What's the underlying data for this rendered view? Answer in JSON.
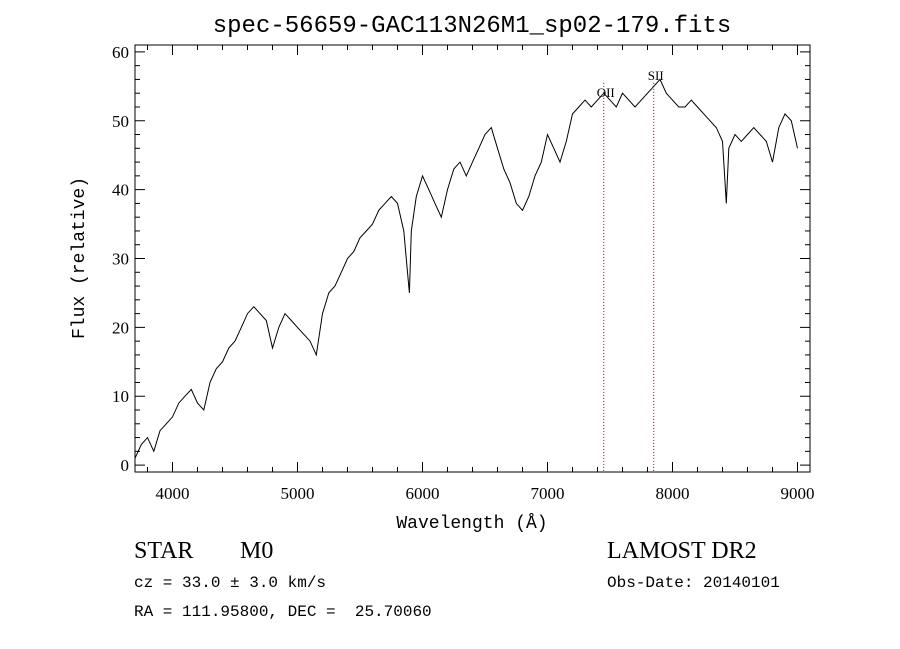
{
  "chart_data": {
    "type": "line",
    "title": "spec-56659-GAC113N26M1_sp02-179.fits",
    "xlabel": "Wavelength (Å)",
    "ylabel": "Flux (relative)",
    "xlim": [
      3700,
      9100
    ],
    "ylim": [
      -1,
      61
    ],
    "x_ticks": [
      4000,
      5000,
      6000,
      7000,
      8000,
      9000
    ],
    "y_ticks": [
      0,
      10,
      20,
      30,
      40,
      50,
      60
    ],
    "grid": false,
    "line_color": "#000000",
    "marker_color": "#8b0000",
    "spectrum": {
      "x": [
        3700,
        3750,
        3800,
        3850,
        3900,
        3950,
        4000,
        4050,
        4100,
        4150,
        4200,
        4250,
        4300,
        4350,
        4400,
        4450,
        4500,
        4550,
        4600,
        4650,
        4700,
        4750,
        4800,
        4850,
        4900,
        4950,
        5000,
        5050,
        5100,
        5150,
        5200,
        5250,
        5300,
        5350,
        5400,
        5450,
        5500,
        5550,
        5600,
        5650,
        5700,
        5750,
        5800,
        5850,
        5880,
        5895,
        5910,
        5950,
        6000,
        6050,
        6100,
        6150,
        6200,
        6250,
        6300,
        6350,
        6400,
        6450,
        6500,
        6550,
        6600,
        6650,
        6700,
        6750,
        6800,
        6850,
        6900,
        6950,
        7000,
        7050,
        7100,
        7150,
        7200,
        7250,
        7300,
        7350,
        7400,
        7450,
        7500,
        7550,
        7600,
        7650,
        7700,
        7750,
        7800,
        7850,
        7900,
        7950,
        8000,
        8050,
        8100,
        8150,
        8200,
        8250,
        8300,
        8350,
        8400,
        8430,
        8450,
        8500,
        8550,
        8600,
        8650,
        8700,
        8750,
        8800,
        8850,
        8900,
        8950,
        9000
      ],
      "y": [
        1,
        3,
        4,
        2,
        5,
        6,
        7,
        9,
        10,
        11,
        9,
        8,
        12,
        14,
        15,
        17,
        18,
        20,
        22,
        23,
        22,
        21,
        17,
        20,
        22,
        21,
        20,
        19,
        18,
        16,
        22,
        25,
        26,
        28,
        30,
        31,
        33,
        34,
        35,
        37,
        38,
        39,
        38,
        34,
        28,
        25,
        34,
        39,
        42,
        40,
        38,
        36,
        40,
        43,
        44,
        42,
        44,
        46,
        48,
        49,
        46,
        43,
        41,
        38,
        37,
        39,
        42,
        44,
        48,
        46,
        44,
        47,
        51,
        52,
        53,
        52,
        53,
        54,
        53,
        52,
        54,
        53,
        52,
        53,
        54,
        55,
        56,
        54,
        53,
        52,
        52,
        53,
        52,
        51,
        50,
        49,
        47,
        38,
        46,
        48,
        47,
        48,
        49,
        48,
        47,
        44,
        49,
        51,
        50,
        46
      ]
    },
    "annotations": [
      {
        "label": "OII",
        "x": 7450
      },
      {
        "label": "SII",
        "x": 7850
      }
    ]
  },
  "info": {
    "class": "STAR",
    "subclass": "M0",
    "survey": "LAMOST DR2",
    "cz": "cz = 33.0 ± 3.0 km/s",
    "obs_date": "Obs-Date: 20140101",
    "coords": "RA = 111.95800, DEC =  25.70060"
  }
}
